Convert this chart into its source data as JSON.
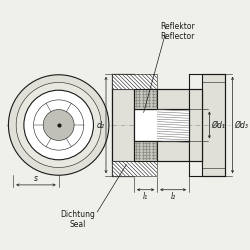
{
  "bg_color": "#f0f0eb",
  "line_color": "#1a1a1a",
  "centerline_color": "#888888",
  "figsize": [
    2.5,
    2.5
  ],
  "dpi": 100,
  "labels": {
    "reflektor": "Reflektor\nReflector",
    "dichtung": "Dichtung\nSeal",
    "d2": "d₂",
    "d1": "Ød₁",
    "d3": "Ød₃",
    "s": "s",
    "l1": "l₁",
    "l2": "l₂"
  }
}
